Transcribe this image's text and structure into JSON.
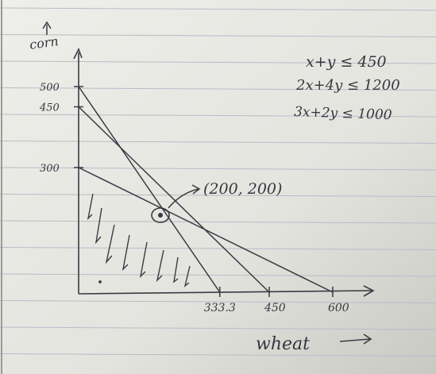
{
  "axes": {
    "y_label": "corn",
    "x_label": "wheat",
    "y_ticks": [
      "500",
      "450",
      "300"
    ],
    "x_ticks": [
      "333.3",
      "450",
      "600"
    ]
  },
  "constraints": [
    "x+y ≤ 450",
    "2x+4y ≤ 1200",
    "3x+2y ≤ 1000"
  ],
  "optimum_label": "(200, 200)",
  "chart_data": {
    "type": "line",
    "title": "",
    "xlabel": "wheat",
    "ylabel": "corn",
    "series": [
      {
        "name": "x+y ≤ 450",
        "x": [
          0,
          450
        ],
        "y": [
          450,
          0
        ]
      },
      {
        "name": "2x+4y ≤ 1200",
        "x": [
          0,
          600
        ],
        "y": [
          300,
          0
        ]
      },
      {
        "name": "3x+2y ≤ 1000",
        "x": [
          0,
          333.3
        ],
        "y": [
          500,
          0
        ]
      }
    ],
    "highlight_point": {
      "x": 200,
      "y": 200,
      "label": "(200, 200)"
    },
    "feasible_region": "shaded below all lines",
    "colors": {
      "ink": "#3a3a44",
      "paper": "#ecece8",
      "rule": "#b7bcc6"
    }
  }
}
